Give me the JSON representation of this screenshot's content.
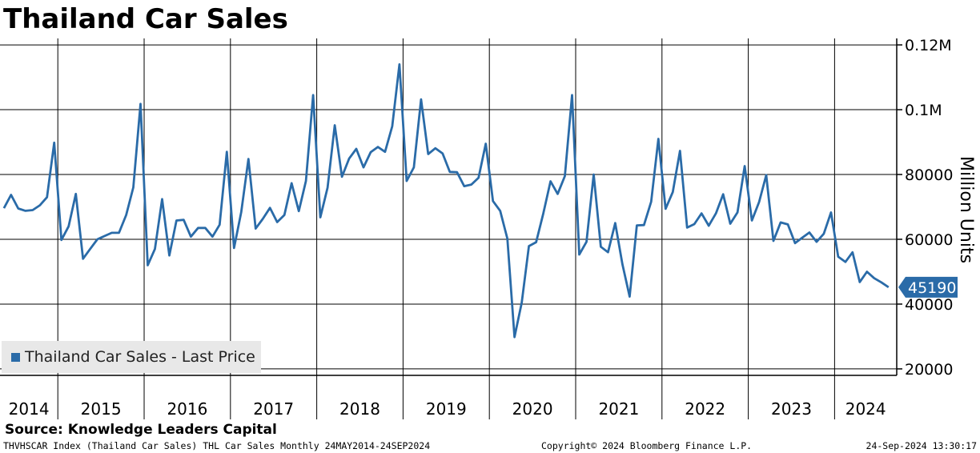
{
  "header": {
    "title": "Thailand Car Sales"
  },
  "legend": {
    "label": "Thailand Car Sales - Last Price",
    "color": "#2a6ba8"
  },
  "source": "Source: Knowledge Leaders Capital",
  "footer": {
    "left": "THVHSCAR Index (Thailand Car Sales) THL Car Sales  Monthly 24MAY2014-24SEP2024",
    "middle": "Copyright© 2024 Bloomberg Finance L.P.",
    "right": "24-Sep-2024 13:30:17"
  },
  "chart_data": {
    "type": "line",
    "title": "Thailand Car Sales",
    "ylabel": "Million Units",
    "ylim": [
      18000,
      122000
    ],
    "y_ticks": [
      {
        "value": 120000,
        "label": "0.12M"
      },
      {
        "value": 100000,
        "label": "0.1M"
      },
      {
        "value": 80000,
        "label": "80000"
      },
      {
        "value": 60000,
        "label": "60000"
      },
      {
        "value": 40000,
        "label": "40000"
      },
      {
        "value": 20000,
        "label": "20000"
      }
    ],
    "x_start": {
      "year": 2014,
      "month": 5
    },
    "x_range": [
      2014.33,
      2024.72
    ],
    "x_labels": [
      "2014",
      "2015",
      "2016",
      "2017",
      "2018",
      "2019",
      "2020",
      "2021",
      "2022",
      "2023",
      "2024"
    ],
    "last_value": {
      "value": 45190,
      "label": "45190",
      "color": "#2a6ba8"
    },
    "series": [
      {
        "name": "Thailand Car Sales - Last Price",
        "color": "#2a6ba8",
        "values": [
          69600,
          73700,
          69500,
          68800,
          69000,
          70500,
          73000,
          89800,
          59800,
          64000,
          74000,
          54000,
          57000,
          60000,
          61000,
          62000,
          62000,
          67500,
          76000,
          101800,
          52000,
          57000,
          72400,
          55000,
          65800,
          66000,
          60800,
          63500,
          63500,
          60800,
          64500,
          87000,
          57300,
          68400,
          84800,
          63300,
          66300,
          69700,
          65300,
          67500,
          77300,
          68700,
          78000,
          104500,
          66800,
          75900,
          95200,
          79300,
          84900,
          87900,
          82200,
          86900,
          88500,
          87000,
          94900,
          114000,
          78000,
          82200,
          103200,
          86300,
          88100,
          86500,
          80800,
          80700,
          76400,
          76900,
          79000,
          89500,
          71800,
          68800,
          60200,
          29800,
          40400,
          57900,
          59100,
          68000,
          77900,
          74000,
          79500,
          104500,
          55300,
          59200,
          80000,
          57700,
          56000,
          65000,
          52300,
          42300,
          64300,
          64400,
          71600,
          91000,
          69400,
          74600,
          87300,
          63600,
          64700,
          68000,
          64200,
          68000,
          73900,
          64800,
          68300,
          82600,
          65800,
          71500,
          79800,
          59500,
          65200,
          64600,
          58800,
          60500,
          62100,
          59200,
          61700,
          68300,
          54600,
          53000,
          56000,
          46800,
          50000,
          48000,
          46700,
          45190
        ]
      }
    ]
  }
}
